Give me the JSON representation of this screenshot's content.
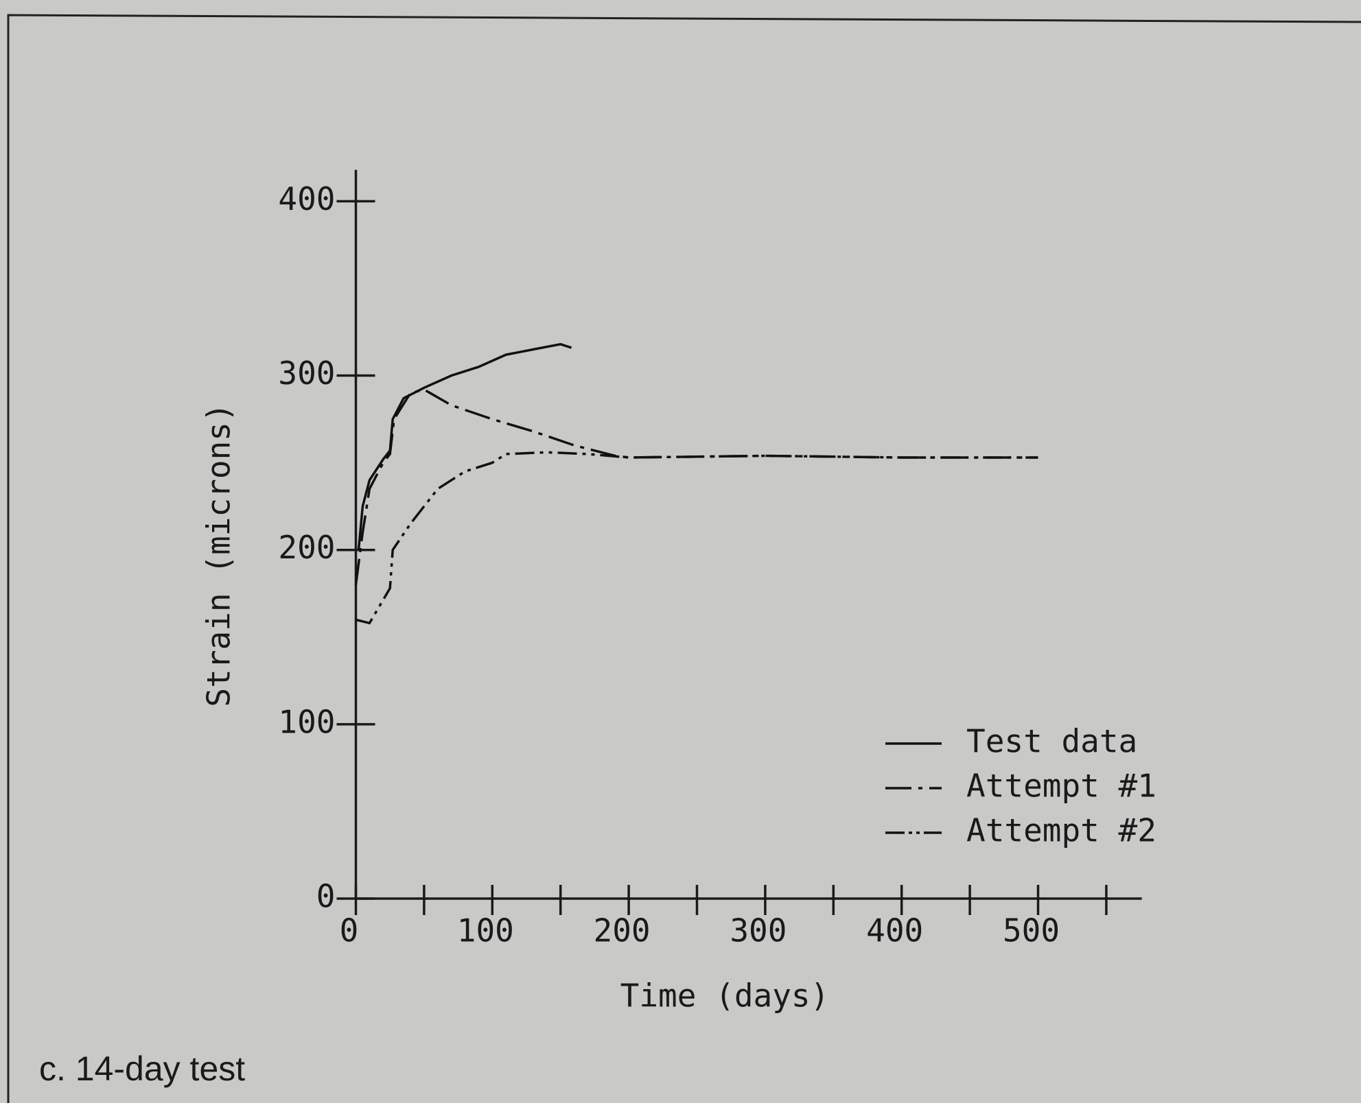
{
  "chart_data": {
    "type": "line",
    "caption": "c.  14-day test",
    "xlabel": "Time (days)",
    "ylabel": "Strain (microns)",
    "xlim": [
      0,
      576
    ],
    "ylim": [
      0,
      418
    ],
    "xticks": [
      0,
      100,
      200,
      300,
      400,
      500
    ],
    "xminor_ticks": [
      50,
      150,
      250,
      350,
      450,
      550
    ],
    "yticks": [
      0,
      100,
      200,
      300,
      400
    ],
    "legend": "lower right",
    "series": [
      {
        "name": "Test data",
        "color": "#111111",
        "dash": "solid",
        "x": [
          2,
          5,
          10,
          20,
          25,
          27,
          35,
          50,
          70,
          90,
          110,
          130,
          150,
          158
        ],
        "values": [
          200,
          225,
          240,
          252,
          257,
          275,
          287,
          293,
          300,
          305,
          312,
          315,
          318,
          316
        ]
      },
      {
        "name": "Attempt #1",
        "color": "#111111",
        "dash": "dash-dot",
        "x": [
          0,
          5,
          10,
          20,
          25,
          28,
          40,
          50,
          70,
          100,
          130,
          160,
          190,
          200,
          300,
          400,
          500
        ],
        "values": [
          180,
          210,
          235,
          250,
          255,
          275,
          290,
          292,
          283,
          275,
          268,
          260,
          254,
          253,
          254,
          253,
          253
        ]
      },
      {
        "name": "Attempt #2",
        "color": "#111111",
        "dash": "dash-dot-dot",
        "x": [
          0,
          10,
          25,
          27,
          40,
          60,
          80,
          100,
          110,
          140,
          170,
          200,
          300,
          400,
          500
        ],
        "values": [
          160,
          158,
          178,
          200,
          215,
          235,
          245,
          250,
          255,
          256,
          255,
          253,
          254,
          253,
          253
        ]
      }
    ]
  }
}
